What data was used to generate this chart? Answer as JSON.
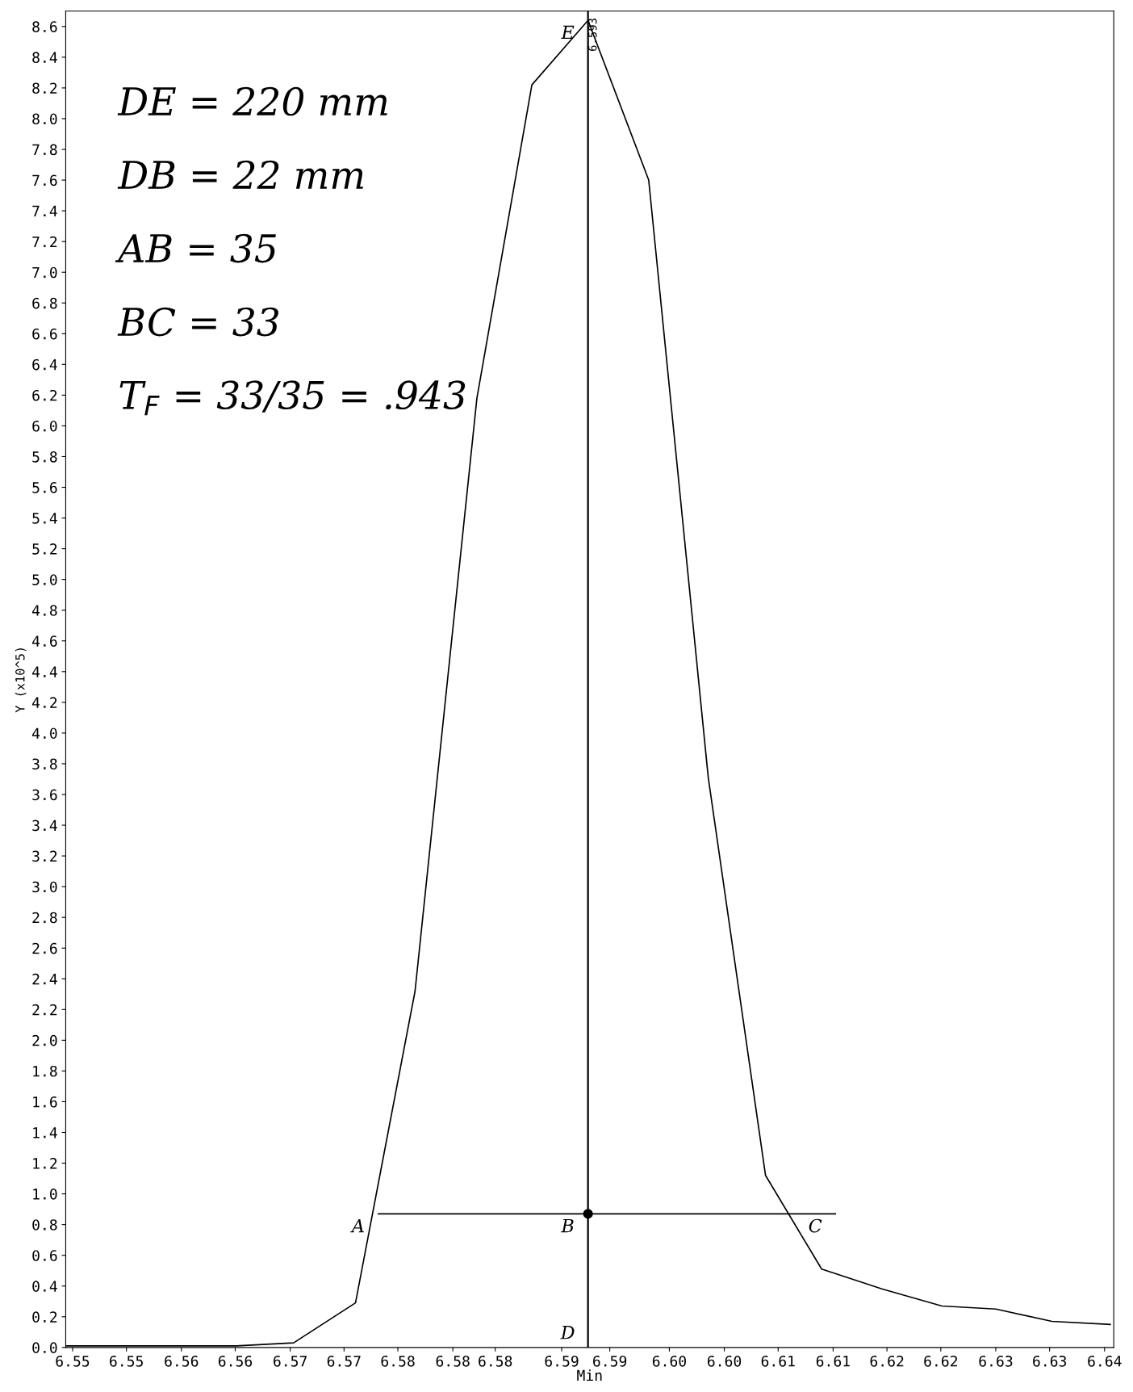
{
  "chart_data": {
    "type": "line",
    "xlabel": "Min",
    "ylabel": "Y (x10^5)",
    "series": [
      {
        "color": "#000000",
        "x": [
          6.5474,
          6.5523,
          6.5573,
          6.5623,
          6.5673,
          6.5727,
          6.5779,
          6.5833,
          6.5881,
          6.593,
          6.5983,
          6.6035,
          6.6085,
          6.6134,
          6.6187,
          6.6239,
          6.6286,
          6.6335,
          6.6386
        ],
        "values": [
          0.01,
          0.01,
          0.01,
          0.01,
          0.03,
          0.29,
          2.32,
          6.18,
          8.22,
          8.64,
          7.6,
          3.71,
          1.12,
          0.51,
          0.38,
          0.27,
          0.25,
          0.17,
          0.15
        ]
      },
      {
        "color": "#000000",
        "x": [
          6.5747,
          6.6146
        ],
        "values": [
          0.87,
          0.87
        ]
      },
      {
        "type": "scatter",
        "marker": "circle",
        "color": "#000000",
        "x": [
          6.593
        ],
        "values": [
          0.87
        ]
      }
    ],
    "xlim": [
      6.5474,
      6.6389
    ],
    "ylim": [
      0.0,
      8.7
    ],
    "xticks": [
      {
        "value": 6.548,
        "label": "6.55"
      },
      {
        "value": 6.5527,
        "label": "6.55"
      },
      {
        "value": 6.5575,
        "label": "6.56"
      },
      {
        "value": 6.5622,
        "label": "6.56"
      },
      {
        "value": 6.567,
        "label": "6.57"
      },
      {
        "value": 6.5717,
        "label": "6.57"
      },
      {
        "value": 6.5764,
        "label": "6.58"
      },
      {
        "value": 6.5812,
        "label": "6.58"
      },
      {
        "value": 6.5849,
        "label": "6.58"
      },
      {
        "value": 6.5907,
        "label": "6.59"
      },
      {
        "value": 6.5949,
        "label": "6.59"
      },
      {
        "value": 6.6001,
        "label": "6.60"
      },
      {
        "value": 6.6049,
        "label": "6.60"
      },
      {
        "value": 6.6096,
        "label": "6.61"
      },
      {
        "value": 6.6144,
        "label": "6.61"
      },
      {
        "value": 6.6191,
        "label": "6.62"
      },
      {
        "value": 6.6238,
        "label": "6.62"
      },
      {
        "value": 6.6286,
        "label": "6.63"
      },
      {
        "value": 6.6333,
        "label": "6.63"
      },
      {
        "value": 6.6381,
        "label": "6.64"
      }
    ],
    "yticks": [
      {
        "value": 0.0,
        "label": "0.0"
      },
      0.2,
      0.4,
      0.6,
      0.8,
      {
        "value": 1.0,
        "label": "1.0"
      },
      1.2,
      1.4,
      1.6,
      1.8,
      {
        "value": 2.0,
        "label": "2.0"
      },
      2.2,
      2.4,
      2.6,
      2.8,
      {
        "value": 3.0,
        "label": "3.0"
      },
      3.2,
      3.4,
      3.6,
      3.8,
      {
        "value": 4.0,
        "label": "4.0"
      },
      4.2,
      4.4,
      4.6,
      4.8,
      {
        "value": 5.0,
        "label": "5.0"
      },
      5.2,
      5.4,
      5.6,
      5.8,
      {
        "value": 6.0,
        "label": "6.0"
      },
      6.2,
      6.4,
      6.6,
      6.8,
      {
        "value": 7.0,
        "label": "7.0"
      },
      7.2,
      7.4,
      7.6,
      7.8,
      {
        "value": 8.0,
        "label": "8.0"
      },
      8.2,
      8.4,
      8.6
    ],
    "ref_lines": [
      {
        "axis": "x",
        "value": 6.593,
        "label": "6.593",
        "color": "#000000"
      }
    ],
    "grid": false,
    "legend": false,
    "line_style": "solid",
    "annotations": [
      "DE = 220 mm",
      "DB = 22 mm",
      "AB = 35",
      "BC = 33",
      "T$_{F}$ = 33/35 = .943",
      {
        "text": "A",
        "x": 6.5747,
        "y": 0.87
      },
      {
        "text": "B",
        "x": 6.593,
        "y": 0.87
      },
      {
        "text": "C",
        "x": 6.6146,
        "y": 0.87
      },
      {
        "text": "D",
        "x": 6.593,
        "y": 0.0
      },
      {
        "text": "E",
        "x": 6.593,
        "y": 8.64
      }
    ]
  }
}
